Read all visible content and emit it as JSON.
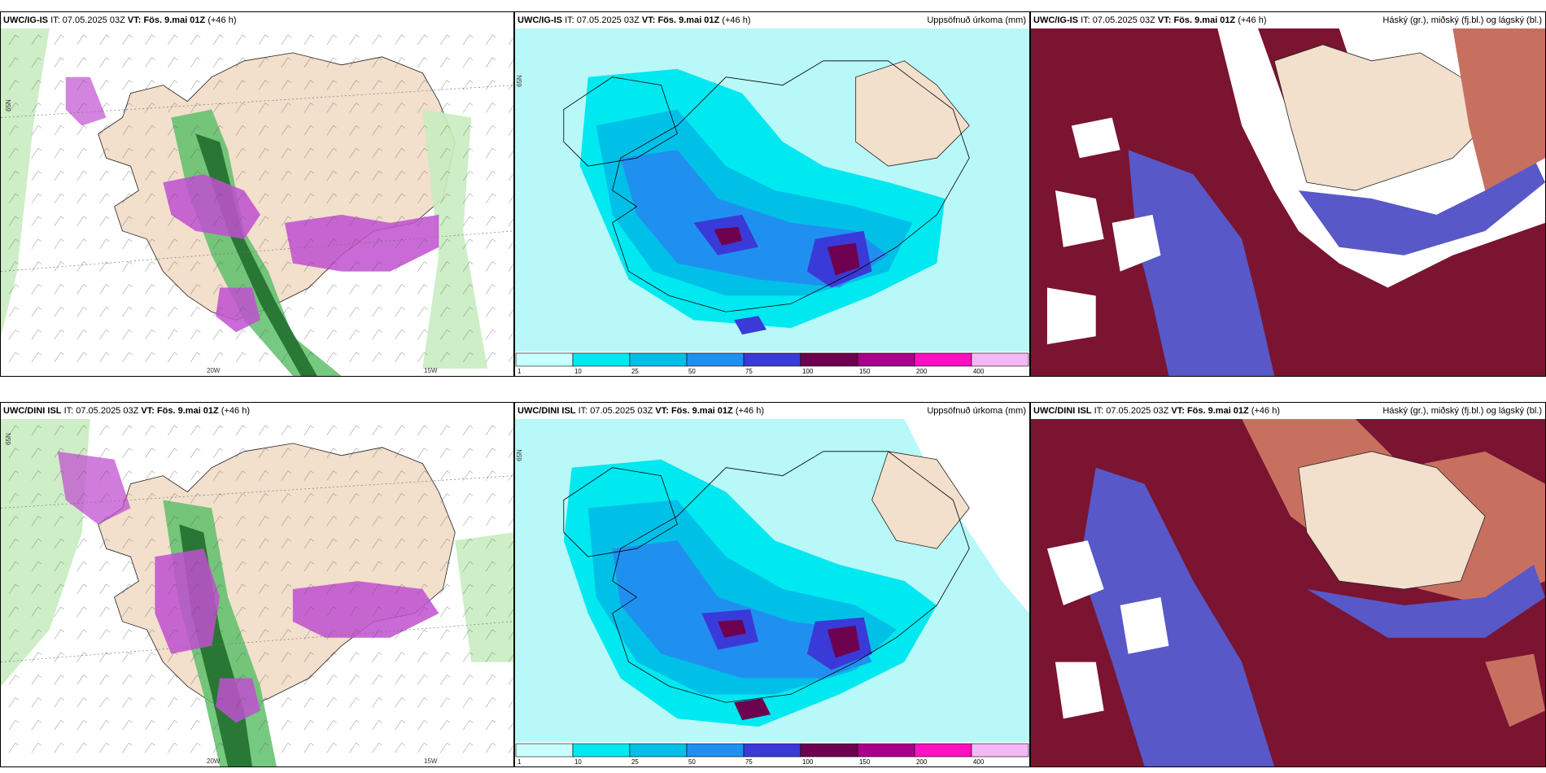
{
  "rows": [
    {
      "model": "UWC/IG-IS",
      "init_label": "IT:",
      "init": "07.05.2025 03Z",
      "valid_label": "VT:",
      "valid": "Fös. 9.mai 01Z",
      "lead": "(+46 h)",
      "precip_title": "Uppsöfnuð úrkoma (mm)",
      "cloud_title": "Háský (gr.), miðský (fj.bl.) og lágský (bl.)",
      "axis": {
        "lat": "65N",
        "lon1": "20W",
        "lon2": "15W"
      }
    },
    {
      "model": "UWC/DINI ISL",
      "init_label": "IT:",
      "init": "07.05.2025 03Z",
      "valid_label": "VT:",
      "valid": "Fös. 9.mai 01Z",
      "lead": "(+46 h)",
      "precip_title": "Uppsöfnuð úrkoma (mm)",
      "cloud_title": "Háský (gr.), miðský (fj.bl.) og lágský (bl.)",
      "axis": {
        "lat": "65N",
        "lon1": "20W",
        "lon2": "15W"
      }
    }
  ],
  "precip_legend": {
    "ticks": [
      "1",
      "10",
      "25",
      "50",
      "75",
      "100",
      "150",
      "200",
      "400"
    ],
    "colors": [
      "#c8ffff",
      "#00e8f0",
      "#00c0e8",
      "#2090f0",
      "#3a3ad8",
      "#6e0050",
      "#a8008a",
      "#ff10c0",
      "#f4b8f4"
    ]
  },
  "colors": {
    "land": "#f2dfcc",
    "precip_bg": "#b8f8f8",
    "green_light": "#c8ecc0",
    "green_mid": "#5ec06a",
    "green_dark": "#1c6a28",
    "magenta": "#c050d0",
    "cloud_high": "#7a1430",
    "cloud_mid": "#5858c8",
    "cloud_low": "#c87060"
  }
}
